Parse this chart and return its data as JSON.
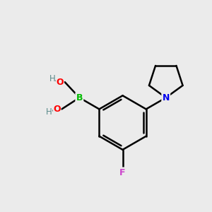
{
  "background_color": "#ebebeb",
  "bond_color": "#000000",
  "atom_colors": {
    "B": "#00bb00",
    "O": "#ff0000",
    "N": "#0000ee",
    "F": "#cc44cc",
    "H": "#5a8a8a",
    "C": "#000000"
  },
  "figsize": [
    3.0,
    3.0
  ],
  "dpi": 100,
  "bond_lw": 1.8
}
